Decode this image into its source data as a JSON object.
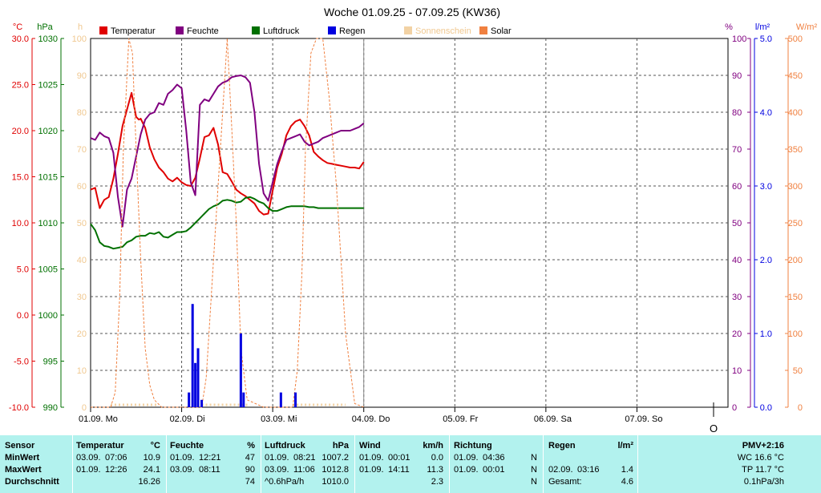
{
  "title": "Woche 01.09.25 - 07.09.25 (KW36)",
  "colors": {
    "temperatur": "#e00000",
    "feuchte": "#800080",
    "luftdruck": "#007000",
    "regen": "#0000e0",
    "sonnenschein": "#f2d2a4",
    "solar": "#f08040",
    "stats_bg": "#b2f2ee"
  },
  "legend": [
    {
      "key": "temperatur",
      "label": "Temperatur",
      "color": "#e00000"
    },
    {
      "key": "feuchte",
      "label": "Feuchte",
      "color": "#800080"
    },
    {
      "key": "luftdruck",
      "label": "Luftdruck",
      "color": "#007000"
    },
    {
      "key": "regen",
      "label": "Regen",
      "color": "#0000e0"
    },
    {
      "key": "sonnenschein",
      "label": "Sonnenschein",
      "color": "#f2d2a4"
    },
    {
      "key": "solar",
      "label": "Solar",
      "color": "#f08040"
    }
  ],
  "axes": {
    "temp": {
      "unit": "°C",
      "min": -10,
      "max": 30,
      "ticks": [
        "30.0",
        "25.0",
        "20.0",
        "15.0",
        "10.0",
        "5.0",
        "0.0",
        "-5.0",
        "-10.0"
      ],
      "color": "#e00000"
    },
    "pressure": {
      "unit": "hPa",
      "min": 990,
      "max": 1030,
      "ticks": [
        "1030",
        "1025",
        "1020",
        "1015",
        "1010",
        "1005",
        "1000",
        "995",
        "990"
      ],
      "color": "#007000"
    },
    "sun": {
      "unit": "h",
      "ticks": [
        "100",
        "90",
        "80",
        "70",
        "60",
        "50",
        "40",
        "30",
        "20",
        "10",
        "0"
      ],
      "color": "#f2d2a4"
    },
    "humidity": {
      "unit": "%",
      "min": 0,
      "max": 100,
      "ticks": [
        "100",
        "90",
        "80",
        "70",
        "60",
        "50",
        "40",
        "30",
        "20",
        "10",
        "0"
      ],
      "color": "#800080"
    },
    "rain": {
      "unit": "l/m²",
      "min": 0,
      "max": 5,
      "ticks": [
        "5.0",
        "4.0",
        "3.0",
        "2.0",
        "1.0",
        "0.0"
      ],
      "color": "#0000e0"
    },
    "solar": {
      "unit": "W/m²",
      "min": 0,
      "max": 500,
      "ticks": [
        "500",
        "450",
        "400",
        "350",
        "300",
        "250",
        "200",
        "150",
        "100",
        "50",
        "0"
      ],
      "color": "#f08040"
    }
  },
  "days": [
    "01.09.  Mo",
    "02.09.  Di",
    "03.09.  Mi",
    "04.09.  Do",
    "05.09.  Fr",
    "06.09.  Sa",
    "07.09.  So"
  ],
  "now_marker": "O",
  "chart_data": {
    "type": "line",
    "x_unit": "days since 01.09.25 00:00",
    "x_range": [
      0,
      7
    ],
    "series": [
      {
        "name": "Temperatur",
        "axis": "temp",
        "color": "#e00000",
        "x": [
          0,
          0.05,
          0.1,
          0.15,
          0.2,
          0.25,
          0.3,
          0.35,
          0.4,
          0.45,
          0.5,
          0.53,
          0.55,
          0.6,
          0.65,
          0.7,
          0.75,
          0.8,
          0.85,
          0.9,
          0.95,
          1.0,
          1.05,
          1.1,
          1.15,
          1.2,
          1.25,
          1.3,
          1.35,
          1.4,
          1.45,
          1.5,
          1.55,
          1.6,
          1.65,
          1.7,
          1.75,
          1.8,
          1.85,
          1.9,
          1.95,
          2.0,
          2.05,
          2.1,
          2.15,
          2.2,
          2.25,
          2.3,
          2.35,
          2.4,
          2.45,
          2.5,
          2.55,
          2.6,
          2.65,
          2.7,
          2.75,
          2.8,
          2.85,
          2.9,
          2.95,
          3.0
        ],
        "y": [
          13.6,
          13.8,
          11.6,
          12.5,
          12.8,
          14.8,
          17.5,
          20.5,
          22.3,
          24.1,
          21.5,
          21.2,
          21.3,
          20.3,
          18.2,
          16.9,
          16.0,
          15.5,
          14.8,
          14.5,
          14.9,
          14.4,
          14.1,
          14.0,
          14.9,
          17.0,
          19.3,
          19.5,
          20.3,
          18.5,
          15.5,
          15.3,
          14.5,
          13.6,
          13.2,
          12.9,
          12.5,
          12.1,
          11.3,
          10.9,
          11.0,
          13.5,
          16.0,
          17.5,
          19.5,
          20.5,
          21.0,
          21.2,
          20.5,
          19.5,
          17.7,
          17.2,
          16.8,
          16.5,
          16.4,
          16.3,
          16.2,
          16.1,
          16.0,
          16.0,
          15.9,
          16.6
        ]
      },
      {
        "name": "Feuchte",
        "axis": "humidity",
        "color": "#800080",
        "x": [
          0,
          0.05,
          0.1,
          0.15,
          0.2,
          0.25,
          0.3,
          0.35,
          0.4,
          0.45,
          0.5,
          0.55,
          0.6,
          0.65,
          0.7,
          0.75,
          0.8,
          0.85,
          0.9,
          0.95,
          1.0,
          1.05,
          1.1,
          1.15,
          1.2,
          1.25,
          1.3,
          1.35,
          1.4,
          1.45,
          1.5,
          1.55,
          1.6,
          1.65,
          1.7,
          1.75,
          1.8,
          1.85,
          1.9,
          1.95,
          2.0,
          2.05,
          2.1,
          2.15,
          2.2,
          2.25,
          2.3,
          2.35,
          2.4,
          2.45,
          2.5,
          2.55,
          2.6,
          2.65,
          2.7,
          2.75,
          2.8,
          2.85,
          2.9,
          2.95,
          3.0
        ],
        "y": [
          73,
          72.5,
          74.5,
          73.5,
          73,
          69,
          57,
          49,
          59,
          62,
          68,
          74,
          78,
          79.5,
          80,
          82.5,
          82,
          85,
          86,
          87.5,
          86.5,
          75,
          61,
          57.5,
          82,
          83.5,
          83,
          85,
          87,
          88,
          88.5,
          89.5,
          89.8,
          90,
          89.5,
          88,
          80,
          66,
          58,
          56,
          61,
          66,
          69.5,
          72.5,
          73,
          73.5,
          74,
          72,
          71,
          71.5,
          72,
          73,
          73.5,
          74,
          74.5,
          75,
          75,
          75,
          75.5,
          76,
          77
        ]
      },
      {
        "name": "Luftdruck",
        "axis": "pressure",
        "color": "#007000",
        "x": [
          0,
          0.05,
          0.1,
          0.15,
          0.2,
          0.25,
          0.3,
          0.35,
          0.4,
          0.45,
          0.5,
          0.55,
          0.6,
          0.65,
          0.7,
          0.75,
          0.8,
          0.85,
          0.9,
          0.95,
          1.0,
          1.05,
          1.1,
          1.15,
          1.2,
          1.25,
          1.3,
          1.35,
          1.4,
          1.45,
          1.5,
          1.55,
          1.6,
          1.65,
          1.7,
          1.75,
          1.8,
          1.85,
          1.9,
          1.95,
          2.0,
          2.05,
          2.1,
          2.15,
          2.2,
          2.25,
          2.3,
          2.35,
          2.4,
          2.45,
          2.5,
          2.55,
          2.6,
          2.65,
          2.7,
          2.75,
          2.8,
          2.85,
          2.9,
          2.95,
          3.0
        ],
        "y": [
          1009.9,
          1009.2,
          1007.9,
          1007.5,
          1007.4,
          1007.2,
          1007.3,
          1007.4,
          1007.9,
          1008.1,
          1008.5,
          1008.6,
          1008.6,
          1008.9,
          1008.8,
          1009.0,
          1008.5,
          1008.4,
          1008.7,
          1009.0,
          1009.0,
          1009.1,
          1009.5,
          1010.0,
          1010.5,
          1011.0,
          1011.5,
          1011.8,
          1012.0,
          1012.4,
          1012.5,
          1012.4,
          1012.2,
          1012.3,
          1012.7,
          1012.8,
          1012.6,
          1012.3,
          1012.1,
          1011.6,
          1011.3,
          1011.3,
          1011.5,
          1011.7,
          1011.8,
          1011.8,
          1011.8,
          1011.8,
          1011.7,
          1011.7,
          1011.6,
          1011.6,
          1011.6,
          1011.6,
          1011.6,
          1011.6,
          1011.6,
          1011.6,
          1011.6,
          1011.6,
          1011.6
        ]
      },
      {
        "name": "Solar",
        "axis": "solar",
        "color": "#f08040",
        "x": [
          0,
          0.22,
          0.27,
          0.32,
          0.36,
          0.42,
          0.46,
          0.5,
          0.55,
          0.6,
          0.65,
          0.7,
          0.78,
          0.9,
          1.22,
          1.27,
          1.32,
          1.4,
          1.5,
          1.55,
          1.6,
          1.65,
          1.72,
          1.9,
          2.22,
          2.27,
          2.32,
          2.36,
          2.42,
          2.48,
          2.55,
          2.62,
          2.7,
          2.8,
          2.9,
          3.0
        ],
        "y": [
          0,
          0,
          20,
          150,
          350,
          500,
          480,
          350,
          200,
          80,
          30,
          10,
          0,
          0,
          0,
          40,
          140,
          300,
          500,
          380,
          250,
          80,
          10,
          0,
          0,
          50,
          180,
          350,
          480,
          500,
          500,
          420,
          300,
          100,
          5,
          0
        ]
      },
      {
        "name": "Regen",
        "axis": "rain",
        "color": "#0000e0",
        "type": "bar",
        "x": [
          1.08,
          1.12,
          1.15,
          1.18,
          1.22,
          1.65,
          1.68,
          2.09,
          2.25
        ],
        "y": [
          0.2,
          1.4,
          0.6,
          0.8,
          0.1,
          1.0,
          0.2,
          0.2,
          0.2
        ]
      }
    ]
  },
  "stats": {
    "labels": [
      "Sensor",
      "MinWert",
      "MaxWert",
      "Durchschnitt"
    ],
    "temperatur": {
      "head": "Temperatur",
      "unit": "°C",
      "min_date": "03.09.",
      "min_time": "07:06",
      "min": "10.9",
      "max_date": "01.09.",
      "max_time": "12:26",
      "max": "24.1",
      "avg": "16.26"
    },
    "feuchte": {
      "head": "Feuchte",
      "unit": "%",
      "min_date": "01.09.",
      "min_time": "12:21",
      "min": "47",
      "max_date": "03.09.",
      "max_time": "08:11",
      "max": "90",
      "avg": "74"
    },
    "luftdruck": {
      "head": "Luftdruck",
      "unit": "hPa",
      "min_date": "01.09.",
      "min_time": "08:21",
      "min": "1007.2",
      "max_date": "03.09.",
      "max_time": "11:06",
      "max": "1012.8",
      "avg_label": "^0.6hPa/h",
      "avg": "1010.0"
    },
    "wind": {
      "head": "Wind",
      "unit": "km/h",
      "min_date": "01.09.",
      "min_time": "00:01",
      "min": "0.0",
      "max_date": "01.09.",
      "max_time": "14:11",
      "max": "11.3",
      "avg": "2.3"
    },
    "richtung": {
      "head": "Richtung",
      "min_date": "01.09.",
      "min_time": "04:36",
      "min": "N",
      "max_date": "01.09.",
      "max_time": "00:01",
      "max": "N",
      "avg": "N"
    },
    "regen": {
      "head": "Regen",
      "unit": "l/m²",
      "max_date": "02.09.",
      "max_time": "03:16",
      "max": "1.4",
      "total_label": "Gesamt:",
      "total": "4.6"
    },
    "pmv": {
      "head": "PMV+2:16",
      "wc": "WC 16.6 °C",
      "tp": "TP 11.7 °C",
      "trend": "0.1hPa/3h"
    }
  }
}
